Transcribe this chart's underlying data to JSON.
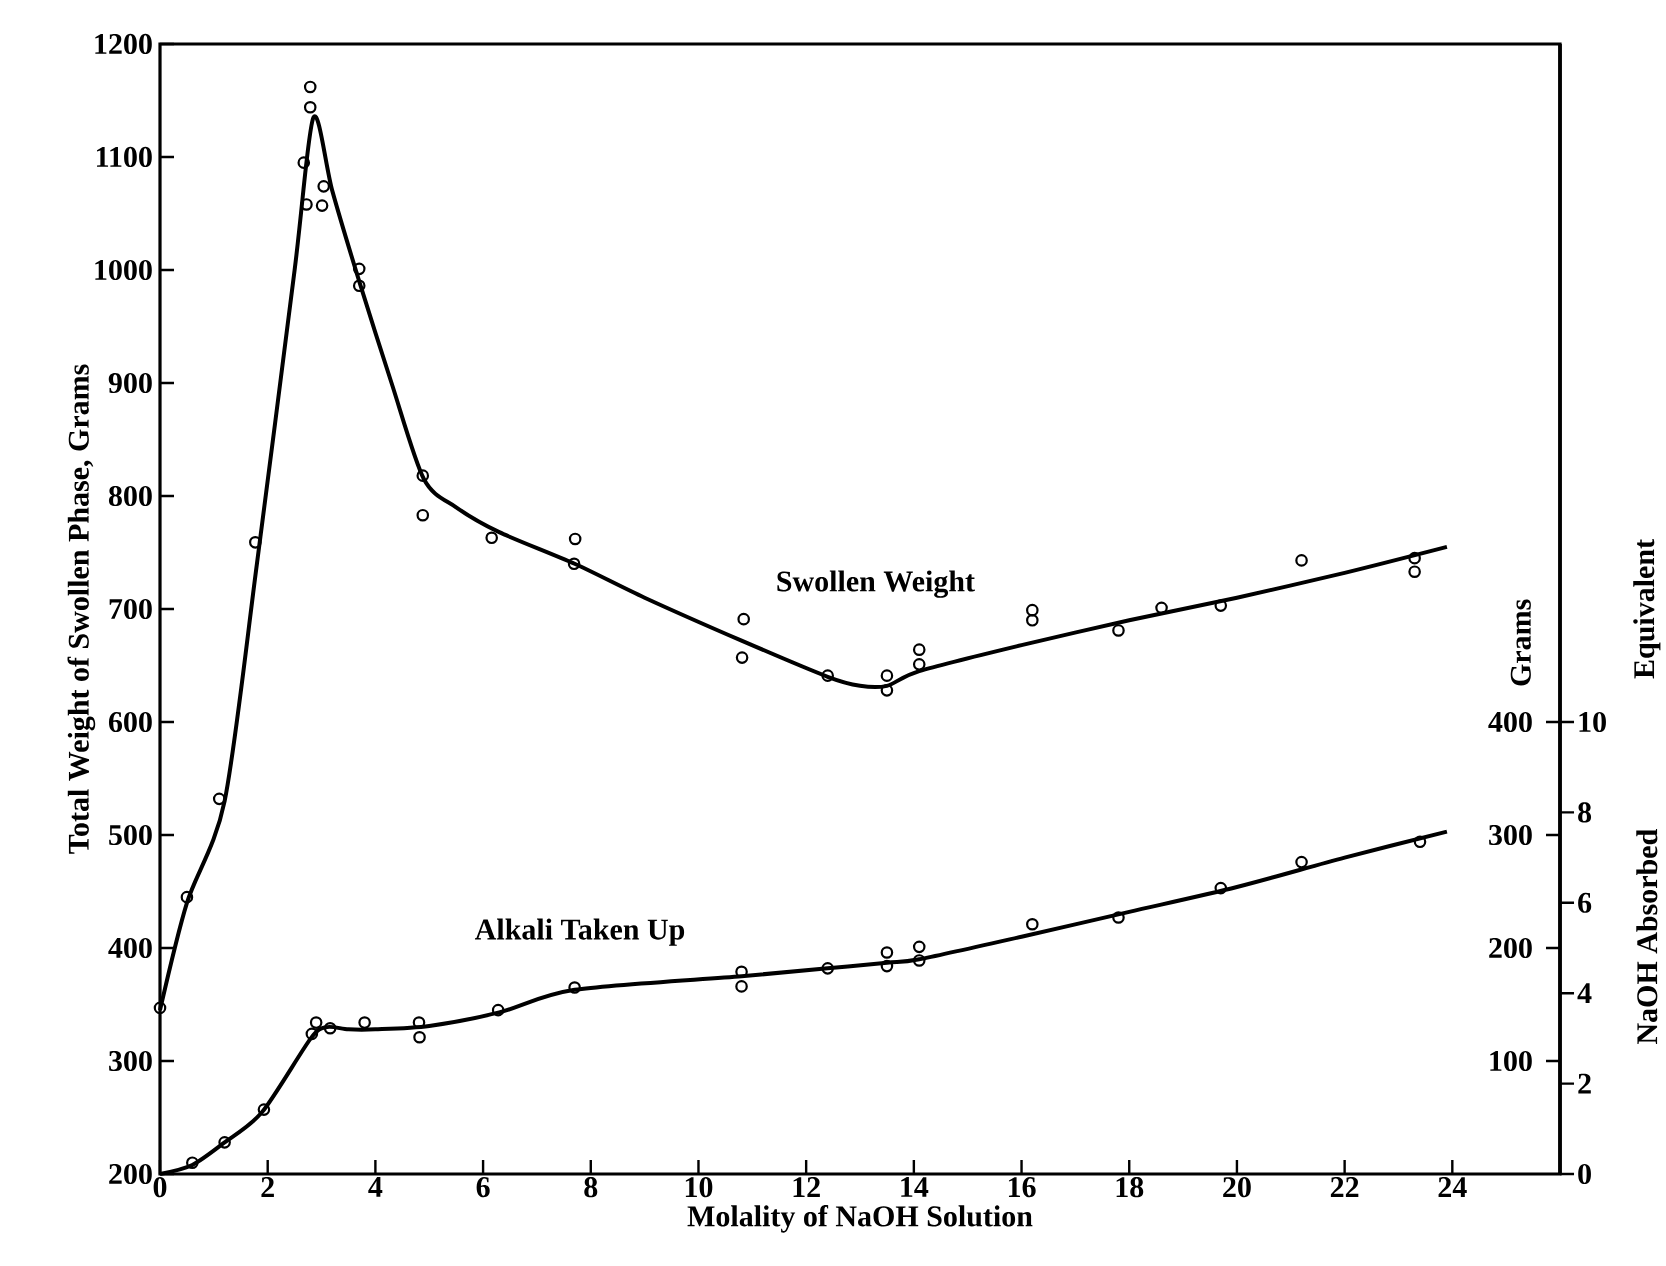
{
  "chart_data": {
    "type": "line",
    "xlabel": "Molality of NaOH Solution",
    "ylabel": "Total Weight of Swollen Phase, Grams",
    "y2label": "Grams",
    "y3label": "Equivalent",
    "xlim": [
      0,
      26
    ],
    "xticks": [
      0,
      2,
      4,
      6,
      8,
      10,
      12,
      14,
      16,
      18,
      20,
      22,
      24
    ],
    "ylim": [
      200,
      1200
    ],
    "yticks": [
      200,
      300,
      400,
      500,
      600,
      700,
      800,
      900,
      1000,
      1100,
      1200
    ],
    "y2lim": [
      0,
      1000
    ],
    "y2ticks": [
      100,
      200,
      300,
      400
    ],
    "y3lim": [
      0,
      25
    ],
    "y3ticks": [
      0,
      2,
      4,
      6,
      8,
      10
    ],
    "series": [
      {
        "color": "#000000",
        "marker": "none",
        "x": [
          0,
          0.5,
          1.2,
          1.8,
          2.5,
          2.85,
          3.2,
          3.7,
          4.3,
          4.9,
          5.5,
          6.3,
          7.7,
          9,
          10.8,
          12.4,
          13.0,
          13.5,
          14.1,
          16,
          18,
          20,
          22,
          23.9
        ],
        "values": [
          345,
          440,
          530,
          740,
          1000,
          1135,
          1070,
          990,
          900,
          815,
          790,
          768,
          740,
          710,
          672,
          640,
          632,
          632,
          645,
          668,
          690,
          710,
          732,
          755
        ]
      },
      {
        "type": "scatter",
        "color": "#000000",
        "marker": "circle",
        "x": [
          0,
          0.5,
          1.1,
          1.77,
          2.67,
          2.72,
          2.79,
          2.79,
          3.01,
          3.04,
          3.7,
          3.7,
          4.88,
          4.88,
          6.16,
          7.71,
          7.69,
          10.84,
          10.81,
          12.4,
          13.5,
          13.5,
          14.1,
          14.1,
          16.2,
          16.2,
          17.8,
          18.6,
          19.7,
          21.2,
          23.3,
          23.3
        ],
        "values": [
          347,
          445,
          532,
          759,
          1095,
          1058,
          1162,
          1144,
          1057,
          1074,
          1001,
          986,
          818,
          783,
          763,
          762,
          740,
          691,
          657,
          641,
          641,
          628,
          664,
          651,
          699,
          690,
          681,
          701,
          703,
          743,
          745,
          733
        ]
      },
      {
        "axis": "y2",
        "color": "#000000",
        "marker": "none",
        "x": [
          0,
          0.6,
          1.2,
          1.9,
          2.8,
          3.1,
          3.5,
          4,
          5,
          6.3,
          7.7,
          10.8,
          12.4,
          13.5,
          14.1,
          16,
          18,
          20,
          22,
          23.9
        ],
        "values": [
          0,
          8,
          28,
          55,
          120,
          130,
          128,
          128,
          131,
          143,
          163,
          175,
          182,
          187,
          190,
          210,
          232,
          254,
          280,
          303
        ]
      },
      {
        "type": "scatter",
        "axis": "y2",
        "color": "#000000",
        "marker": "circle",
        "x": [
          0.6,
          1.2,
          1.93,
          2.82,
          2.9,
          3.16,
          3.8,
          4.81,
          4.82,
          6.28,
          7.7,
          10.8,
          10.8,
          12.4,
          13.5,
          13.5,
          14.1,
          14.1,
          16.2,
          17.8,
          19.7,
          21.2,
          23.4
        ],
        "values": [
          10,
          28,
          57,
          124,
          134,
          129,
          134,
          134,
          121,
          145,
          165,
          179,
          166,
          182,
          196,
          184,
          201,
          189,
          221,
          227,
          253,
          276,
          294
        ]
      }
    ],
    "annotations": [
      "Swollen Weight",
      "Alkali Taken Up",
      "NaOH Absorbed"
    ]
  }
}
